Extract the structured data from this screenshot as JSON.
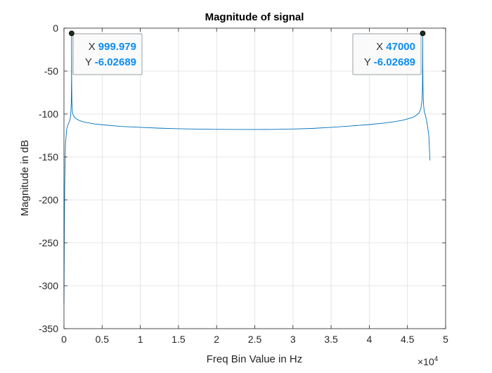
{
  "chart_data": {
    "type": "line",
    "title": "Magnitude of signal",
    "xlabel": "Freq Bin Value in Hz",
    "ylabel": "Magnitude in dB",
    "x_exponent_base": "×10",
    "x_exponent_power": "4",
    "xlim": [
      0,
      50000
    ],
    "ylim": [
      -350,
      0
    ],
    "xticks": [
      0,
      5000,
      10000,
      15000,
      20000,
      25000,
      30000,
      35000,
      40000,
      45000,
      50000
    ],
    "xtick_labels": [
      "0",
      "0.5",
      "1",
      "1.5",
      "2",
      "2.5",
      "3",
      "3.5",
      "4",
      "4.5",
      "5"
    ],
    "yticks": [
      0,
      -50,
      -100,
      -150,
      -200,
      -250,
      -300,
      -350
    ],
    "ytick_labels": [
      "0",
      "-50",
      "-100",
      "-150",
      "-200",
      "-250",
      "-300",
      "-350"
    ],
    "grid": true,
    "line_color": "#0072bd",
    "series": [
      {
        "x": [
          0,
          50,
          100,
          200,
          350,
          500,
          650,
          800,
          900,
          960,
          990,
          999.979,
          1010,
          1040,
          1100,
          1200,
          1400,
          1700,
          2000,
          2500,
          3000,
          4000,
          5000,
          7500,
          10000,
          12500,
          15000,
          17500,
          20000,
          22500,
          24000,
          25500,
          27500,
          30000,
          32500,
          35000,
          37500,
          40000,
          42000,
          43500,
          44500,
          45300,
          45700,
          46000,
          46200,
          46500,
          46750,
          46900,
          46960,
          46990,
          47000,
          47010,
          47040,
          47100,
          47200,
          47400,
          47600,
          47800,
          47950
        ],
        "y": [
          -320,
          -240,
          -180,
          -135,
          -118,
          -113,
          -110,
          -106,
          -99,
          -85,
          -60,
          -6.02689,
          -60,
          -85,
          -97,
          -101,
          -104,
          -106,
          -107.5,
          -109,
          -110,
          -111.5,
          -112.5,
          -114.5,
          -115.5,
          -116.5,
          -117.2,
          -117.6,
          -117.9,
          -118,
          -118,
          -118,
          -117.9,
          -117.5,
          -116.8,
          -115.5,
          -114,
          -112.3,
          -110.5,
          -108.7,
          -107,
          -105,
          -104,
          -102.5,
          -101,
          -99,
          -94,
          -85,
          -70,
          -40,
          -6.02689,
          -40,
          -70,
          -88,
          -97,
          -103,
          -112,
          -125,
          -154
        ]
      }
    ],
    "datatips": [
      {
        "x_label": "X",
        "x_value": "999.979",
        "y_label": "Y",
        "y_value": "-6.02689",
        "x": 999.979,
        "y": -6.02689
      },
      {
        "x_label": "X",
        "x_value": "47000",
        "y_label": "Y",
        "y_value": "-6.02689",
        "x": 47000,
        "y": -6.02689
      }
    ]
  }
}
